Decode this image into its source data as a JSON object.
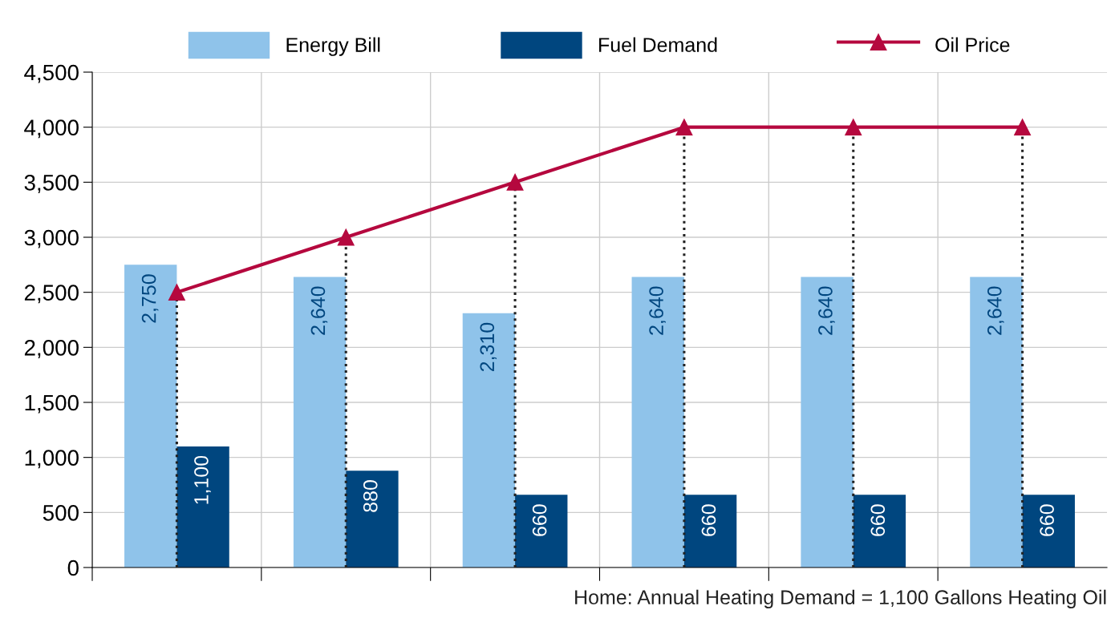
{
  "chart_data": {
    "type": "bar",
    "categories": [
      null,
      null,
      null,
      null,
      null,
      null
    ],
    "series": [
      {
        "name": "Energy Bill",
        "color": "#8fc3ea",
        "values": [
          2750,
          2640,
          2310,
          2640,
          2640,
          2640
        ],
        "value_labels": [
          "2,750",
          "2,640",
          "2,310",
          "2,640",
          "2,640",
          "2,640"
        ]
      },
      {
        "name": "Fuel Demand",
        "color": "#00467f",
        "values": [
          1100,
          880,
          660,
          660,
          660,
          660
        ],
        "value_labels": [
          "1,100",
          "880",
          "660",
          "660",
          "660",
          "660"
        ]
      },
      {
        "name": "Oil Price",
        "type": "line",
        "color": "#b5083e",
        "marker": "triangle",
        "values": [
          2500,
          3000,
          3500,
          4000,
          4000,
          4000
        ]
      }
    ],
    "ylim": [
      0,
      4500
    ],
    "yticks": [
      {
        "value": 0,
        "label": "0"
      },
      {
        "value": 500,
        "label": "500"
      },
      {
        "value": 1000,
        "label": "1,000"
      },
      {
        "value": 1500,
        "label": "1,500"
      },
      {
        "value": 2000,
        "label": "2,000"
      },
      {
        "value": 2500,
        "label": "2,500"
      },
      {
        "value": 3000,
        "label": "3,000"
      },
      {
        "value": 3500,
        "label": "3,500"
      },
      {
        "value": 4000,
        "label": "4,000"
      },
      {
        "value": 4500,
        "label": "4,500"
      }
    ],
    "grid": true,
    "legend": "top",
    "tick_labels": "y",
    "annotations": [
      "Home: Annual Heating Demand = 1,100 Gallons Heating Oil"
    ]
  }
}
